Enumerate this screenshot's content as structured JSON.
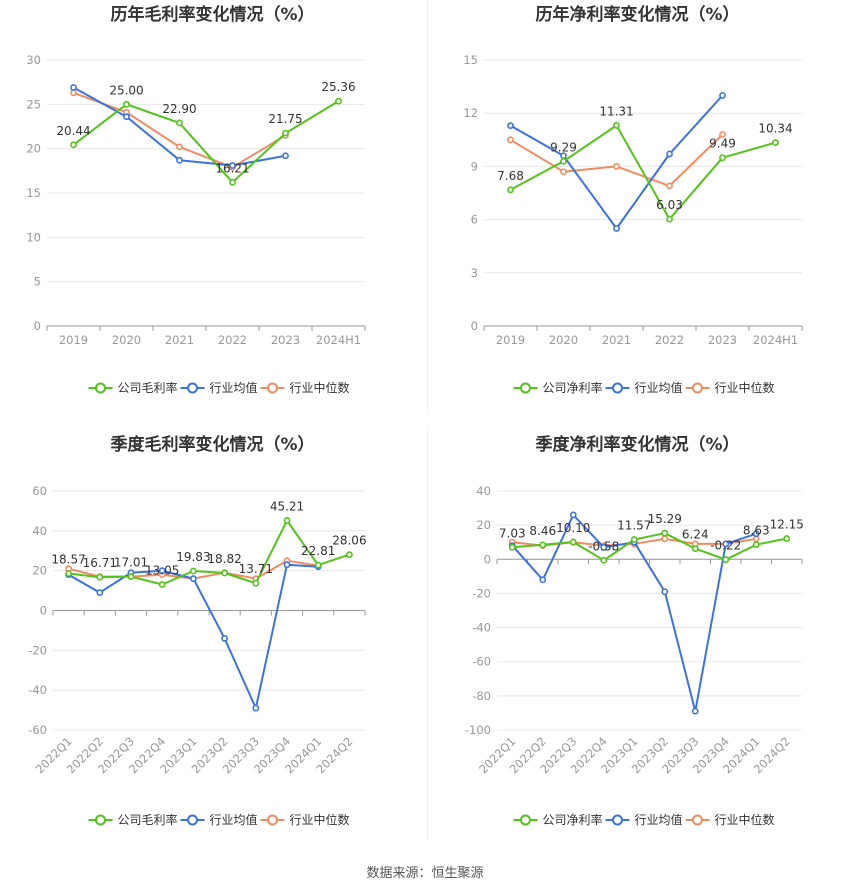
{
  "source_label": "数据来源：恒生聚源",
  "colors": {
    "company": "#52c41a",
    "industry_avg": "#3b73e0",
    "industry_median": "#f08c62",
    "grid": "#e8e8e8",
    "axis": "#999999",
    "tick": "#999999",
    "title": "#333333",
    "label": "#333333"
  },
  "chart_data": [
    {
      "type": "line",
      "title": "历年毛利率变化情况（%）",
      "categories": [
        "2019",
        "2020",
        "2021",
        "2022",
        "2023",
        "2024H1"
      ],
      "ylim": [
        0,
        30
      ],
      "yticks": [
        0,
        5,
        10,
        15,
        20,
        25,
        30
      ],
      "grid": true,
      "legend": "bottom",
      "series": [
        {
          "name": "公司毛利率",
          "key": "company",
          "values": [
            20.44,
            25.0,
            22.9,
            16.21,
            21.75,
            25.36
          ],
          "labels": [
            "20.44",
            "25.00",
            "22.90",
            "16.21",
            "21.75",
            "25.36"
          ]
        },
        {
          "name": "行业均值",
          "key": "industry_avg",
          "values": [
            26.9,
            23.6,
            18.7,
            18.1,
            19.2,
            null
          ]
        },
        {
          "name": "行业中位数",
          "key": "industry_median",
          "values": [
            26.3,
            24.1,
            20.2,
            17.9,
            21.5,
            null
          ]
        }
      ]
    },
    {
      "type": "line",
      "title": "历年净利率变化情况（%）",
      "categories": [
        "2019",
        "2020",
        "2021",
        "2022",
        "2023",
        "2024H1"
      ],
      "ylim": [
        0,
        15
      ],
      "yticks": [
        0,
        3,
        6,
        9,
        12,
        15
      ],
      "grid": true,
      "legend": "bottom",
      "series": [
        {
          "name": "公司净利率",
          "key": "company",
          "values": [
            7.68,
            9.29,
            11.31,
            6.03,
            9.49,
            10.34
          ],
          "labels": [
            "7.68",
            "9.29",
            "11.31",
            "6.03",
            "9.49",
            "10.34"
          ]
        },
        {
          "name": "行业均值",
          "key": "industry_avg",
          "values": [
            11.3,
            9.6,
            5.5,
            9.7,
            13.0,
            null
          ]
        },
        {
          "name": "行业中位数",
          "key": "industry_median",
          "values": [
            10.5,
            8.7,
            9.0,
            7.9,
            10.8,
            null
          ]
        }
      ]
    },
    {
      "type": "line",
      "title": "季度毛利率变化情况（%）",
      "categories": [
        "2022Q1",
        "2022Q2",
        "2022Q3",
        "2022Q4",
        "2023Q1",
        "2023Q2",
        "2023Q3",
        "2023Q4",
        "2024Q1",
        "2024Q2"
      ],
      "ylim": [
        -60,
        60
      ],
      "yticks": [
        -60,
        -40,
        -20,
        0,
        20,
        40,
        60
      ],
      "grid": true,
      "legend": "bottom",
      "series": [
        {
          "name": "公司毛利率",
          "key": "company",
          "values": [
            18.57,
            16.71,
            17.01,
            13.05,
            19.83,
            18.82,
            13.71,
            45.21,
            22.81,
            28.06
          ],
          "labels": [
            "18.57",
            "16.71",
            "17.01",
            "13.05",
            "19.83",
            "18.82",
            "13.71",
            "45.21",
            "22.81",
            "28.06"
          ]
        },
        {
          "name": "行业均值",
          "key": "industry_avg",
          "values": [
            18.0,
            9.0,
            19.0,
            20.0,
            16.0,
            -14.0,
            -49.0,
            23.0,
            22.0,
            null
          ]
        },
        {
          "name": "行业中位数",
          "key": "industry_median",
          "values": [
            21.0,
            17.0,
            17.0,
            18.0,
            16.0,
            19.0,
            16.0,
            25.0,
            22.5,
            null
          ]
        }
      ]
    },
    {
      "type": "line",
      "title": "季度净利率变化情况（%）",
      "categories": [
        "2022Q1",
        "2022Q2",
        "2022Q3",
        "2022Q4",
        "2023Q1",
        "2023Q2",
        "2023Q3",
        "2023Q4",
        "2024Q1",
        "2024Q2"
      ],
      "ylim": [
        -100,
        40
      ],
      "yticks": [
        -100,
        -80,
        -60,
        -40,
        -20,
        0,
        20,
        40
      ],
      "grid": true,
      "legend": "bottom",
      "series": [
        {
          "name": "公司净利率",
          "key": "company",
          "values": [
            7.03,
            8.46,
            10.1,
            -0.58,
            11.57,
            15.29,
            6.24,
            -0.22,
            8.63,
            12.15
          ],
          "labels": [
            "7.03",
            "8.46",
            "10.10",
            "-0.58",
            "11.57",
            "15.29",
            "6.24",
            "-0.22",
            "8.63",
            "12.15"
          ]
        },
        {
          "name": "行业均值",
          "key": "industry_avg",
          "values": [
            8.0,
            -12.0,
            26.0,
            7.0,
            10.0,
            -19.0,
            -89.0,
            9.0,
            15.0,
            null
          ]
        },
        {
          "name": "行业中位数",
          "key": "industry_median",
          "values": [
            10.0,
            8.0,
            10.0,
            8.0,
            9.0,
            12.0,
            9.0,
            9.0,
            12.0,
            null
          ]
        }
      ]
    }
  ]
}
